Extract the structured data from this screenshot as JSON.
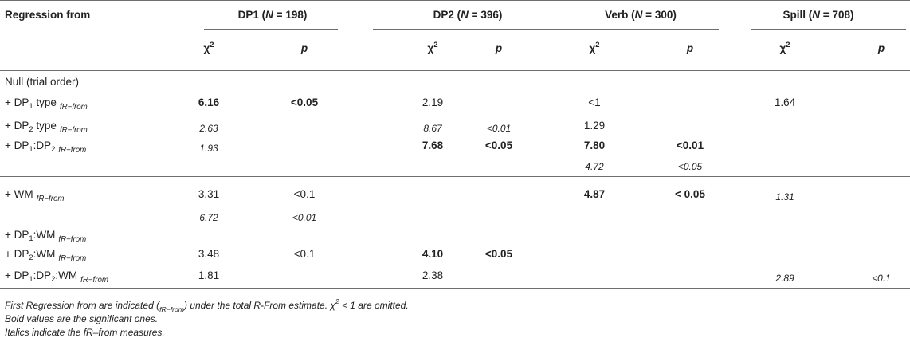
{
  "header": {
    "first_col": "Regression from",
    "groups": [
      {
        "name": "DP1",
        "n": "198"
      },
      {
        "name": "DP2",
        "n": "396"
      },
      {
        "name": "Verb",
        "n": "300"
      },
      {
        "name": "Spill",
        "n": "708"
      }
    ],
    "chi_label": "χ",
    "chi_sup": "2",
    "p_label": "p",
    "n_symbol": "N",
    "eq": " = "
  },
  "section_label": "Null (trial order)",
  "rows": [
    {
      "label": {
        "pre": "+ DP",
        "s1": "1",
        "mid": " type",
        "s2": "",
        "post": ""
      },
      "fr": "fR−from",
      "cells": [
        {
          "col": 0,
          "text": "6.16",
          "style": "b"
        },
        {
          "col": 1,
          "text": "<0.05",
          "style": "b"
        },
        {
          "col": 2,
          "text": "2.19",
          "style": ""
        },
        {
          "col": 4,
          "text": "<1",
          "style": ""
        },
        {
          "col": 6,
          "text": "1.64",
          "style": ""
        }
      ]
    },
    {
      "label": {
        "pre": "+ DP",
        "s1": "2",
        "mid": " type",
        "s2": "",
        "post": ""
      },
      "fr": "fR−from",
      "cells": [
        {
          "col": 0,
          "text": "2.63",
          "style": "i"
        },
        {
          "col": 2,
          "text": "8.67",
          "style": "i"
        },
        {
          "col": 3,
          "text": "<0.01",
          "style": "i"
        },
        {
          "col": 4,
          "text": "1.29",
          "style": ""
        }
      ]
    },
    {
      "label": {
        "pre": "+ DP",
        "s1": "1",
        "mid": ":DP",
        "s2": "2",
        "post": ""
      },
      "fr": "fR−from",
      "cells": [
        {
          "col": 0,
          "text": "1.93",
          "style": "i"
        },
        {
          "col": 2,
          "text": "7.68",
          "style": "b"
        },
        {
          "col": 3,
          "text": "<0.05",
          "style": "b"
        },
        {
          "col": 4,
          "text": "7.80",
          "style": "b"
        },
        {
          "col": 5,
          "text": "<0.01",
          "style": "b"
        }
      ]
    },
    {
      "label": null,
      "fr": "",
      "cells": [
        {
          "col": 4,
          "text": "4.72",
          "style": "i"
        },
        {
          "col": 5,
          "text": "<0.05",
          "style": "i"
        }
      ]
    },
    {
      "label": {
        "pre": "+ WM",
        "s1": "",
        "mid": "",
        "s2": "",
        "post": ""
      },
      "fr": "fR−from",
      "cells": [
        {
          "col": 0,
          "text": "3.31",
          "style": ""
        },
        {
          "col": 1,
          "text": "<0.1",
          "style": ""
        },
        {
          "col": 4,
          "text": "4.87",
          "style": "b"
        },
        {
          "col": 5,
          "text": "< 0.05",
          "style": "b"
        },
        {
          "col": 6,
          "text": "1.31",
          "style": "i"
        }
      ]
    },
    {
      "label": null,
      "fr": "",
      "cells": [
        {
          "col": 0,
          "text": "6.72",
          "style": "i"
        },
        {
          "col": 1,
          "text": "<0.01",
          "style": "i"
        }
      ]
    },
    {
      "label": {
        "pre": "+ DP",
        "s1": "1",
        "mid": ":WM",
        "s2": "",
        "post": ""
      },
      "fr": "fR−from",
      "cells": []
    },
    {
      "label": {
        "pre": "+ DP",
        "s1": "2",
        "mid": ":WM",
        "s2": "",
        "post": ""
      },
      "fr": "fR−from",
      "cells": [
        {
          "col": 0,
          "text": "3.48",
          "style": ""
        },
        {
          "col": 1,
          "text": "<0.1",
          "style": ""
        },
        {
          "col": 2,
          "text": "4.10",
          "style": "b"
        },
        {
          "col": 3,
          "text": "<0.05",
          "style": "b"
        }
      ]
    },
    {
      "label": {
        "pre": "+ DP",
        "s1": "1",
        "mid": ":DP",
        "s2": "2",
        "post": ":WM"
      },
      "fr": "fR−from",
      "cells": [
        {
          "col": 0,
          "text": "1.81",
          "style": ""
        },
        {
          "col": 2,
          "text": "2.38",
          "style": ""
        },
        {
          "col": 6,
          "text": "2.89",
          "style": "i"
        },
        {
          "col": 7,
          "text": "<0.1",
          "style": "i"
        }
      ]
    }
  ],
  "notes": {
    "line1_a": "First Regression from are indicated (",
    "line1_fr": "fR−from",
    "line1_b": ") under the total R-From estimate. χ",
    "line1_sup": "2",
    "line1_c": " < 1 are omitted.",
    "line2": "Bold values are the significant ones.",
    "line3": "Italics indicate the fR–from measures."
  }
}
